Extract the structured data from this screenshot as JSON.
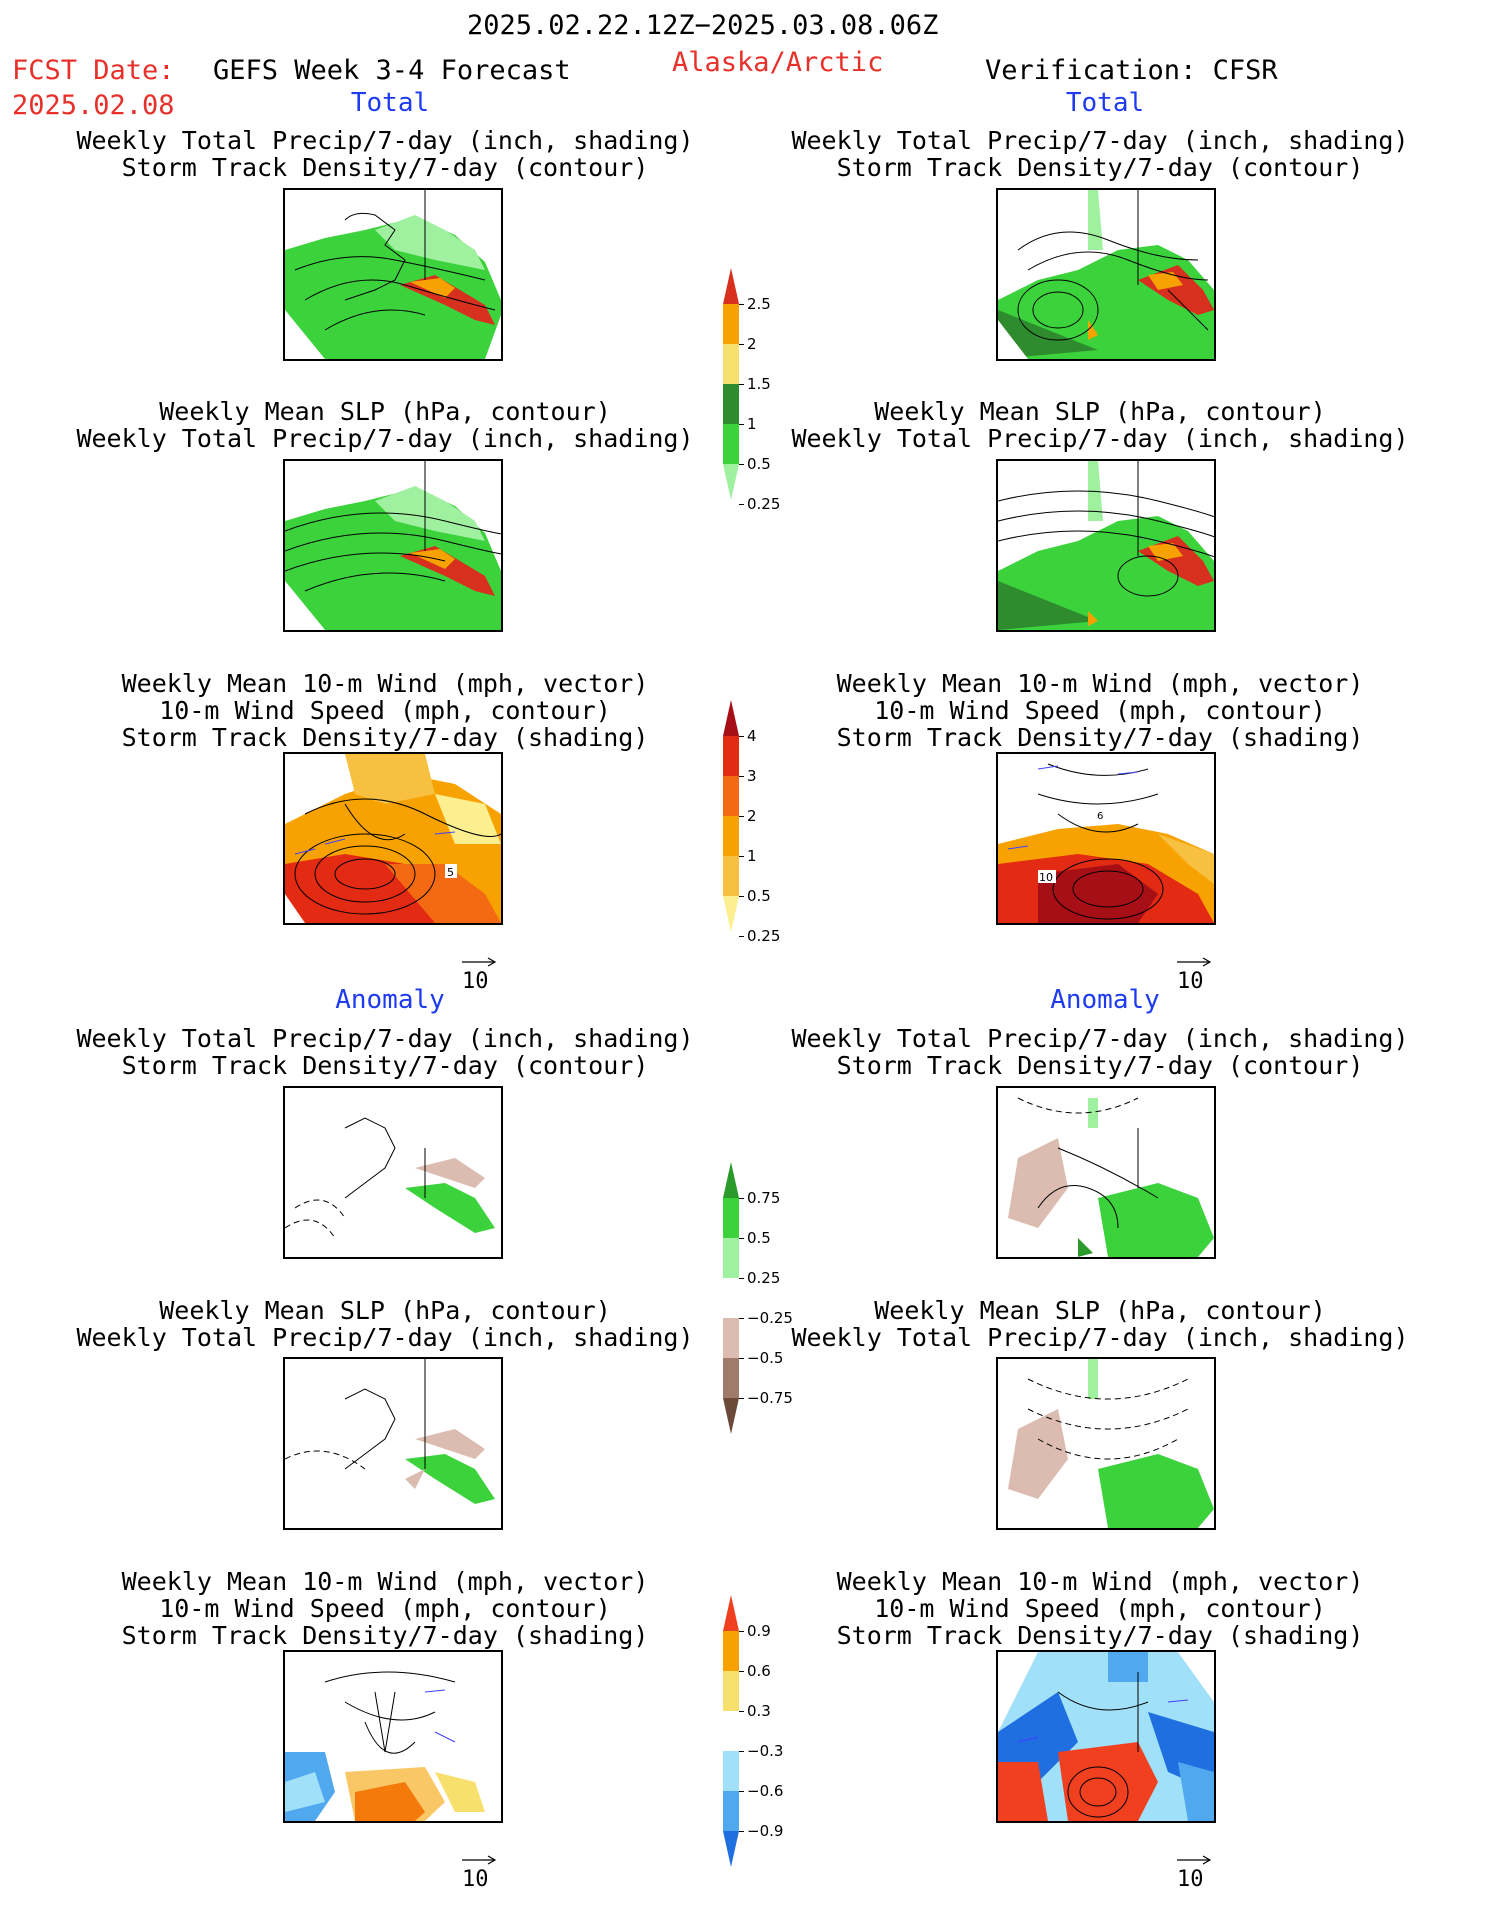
{
  "header": {
    "period": "2025.02.22.12Z−2025.03.08.06Z",
    "fcst_label": "FCST Date:",
    "fcst_date": "2025.02.08",
    "model": "GEFS Week 3-4 Forecast",
    "region": "Alaska/Arctic",
    "verification": "Verification: CFSR"
  },
  "sections": {
    "total": "Total",
    "anomaly": "Anomaly"
  },
  "panels": [
    {
      "id": "l1",
      "title": [
        "Weekly Total Precip/7-day (inch, shading)",
        "Storm Track Density/7-day (contour)"
      ]
    },
    {
      "id": "r1",
      "title": [
        "Weekly Total Precip/7-day (inch, shading)",
        "Storm Track Density/7-day (contour)"
      ]
    },
    {
      "id": "l2",
      "title": [
        "Weekly Mean SLP (hPa, contour)",
        "Weekly Total Precip/7-day (inch, shading)"
      ]
    },
    {
      "id": "r2",
      "title": [
        "Weekly Mean SLP (hPa, contour)",
        "Weekly Total Precip/7-day (inch, shading)"
      ]
    },
    {
      "id": "l3",
      "title": [
        "Weekly Mean 10-m Wind (mph, vector)",
        "10-m Wind Speed (mph, contour)",
        "Storm Track Density/7-day (shading)"
      ]
    },
    {
      "id": "r3",
      "title": [
        "Weekly Mean 10-m Wind (mph, vector)",
        "10-m Wind Speed (mph, contour)",
        "Storm Track Density/7-day (shading)"
      ]
    },
    {
      "id": "l4",
      "title": [
        "Weekly Total Precip/7-day (inch, shading)",
        "Storm Track Density/7-day (contour)"
      ]
    },
    {
      "id": "r4",
      "title": [
        "Weekly Total Precip/7-day (inch, shading)",
        "Storm Track Density/7-day (contour)"
      ]
    },
    {
      "id": "l5",
      "title": [
        "Weekly Mean SLP (hPa, contour)",
        "Weekly Total Precip/7-day (inch, shading)"
      ]
    },
    {
      "id": "r5",
      "title": [
        "Weekly Mean SLP (hPa, contour)",
        "Weekly Total Precip/7-day (inch, shading)"
      ]
    },
    {
      "id": "l6",
      "title": [
        "Weekly Mean 10-m Wind (mph, vector)",
        "10-m Wind Speed (mph, contour)",
        "Storm Track Density/7-day (shading)"
      ]
    },
    {
      "id": "r6",
      "title": [
        "Weekly Mean 10-m Wind (mph, vector)",
        "10-m Wind Speed (mph, contour)",
        "Storm Track Density/7-day (shading)"
      ]
    }
  ],
  "map_annotations": {
    "l3_contour_label": "5",
    "r3_contour_label_a": "10",
    "r3_contour_label_b": "6"
  },
  "vector_reference": "10",
  "colorbars": [
    {
      "id": "cb_precip",
      "labels": [
        "2.5",
        "2",
        "1.5",
        "1",
        "0.5",
        "0.25"
      ],
      "colors": [
        "#d7301f",
        "#f7a200",
        "#f7e06e",
        "#2e8b2e",
        "#3cd23c",
        "#9ff09f"
      ]
    },
    {
      "id": "cb_storm",
      "labels": [
        "4",
        "3",
        "2",
        "1",
        "0.5",
        "0.25"
      ],
      "colors": [
        "#a50f15",
        "#e32a12",
        "#f36a12",
        "#f7a200",
        "#f7c040",
        "#fbef90"
      ]
    },
    {
      "id": "cb_precip_anom",
      "labels": [
        "0.75",
        "0.5",
        "0.25",
        "−0.25",
        "−0.5",
        "−0.75"
      ],
      "colors": [
        "#2a9a2a",
        "#3cd23c",
        "#9ff09f",
        "#ffffff",
        "#dcbcb0",
        "#a07a6a",
        "#6b4a3a"
      ]
    },
    {
      "id": "cb_storm_anom",
      "labels": [
        "0.9",
        "0.6",
        "0.3",
        "−0.3",
        "−0.6",
        "−0.9"
      ],
      "colors": [
        "#f04020",
        "#f7a200",
        "#f7e06e",
        "#ffffff",
        "#a0e0f8",
        "#50a8ee",
        "#1f6fe0"
      ]
    }
  ]
}
